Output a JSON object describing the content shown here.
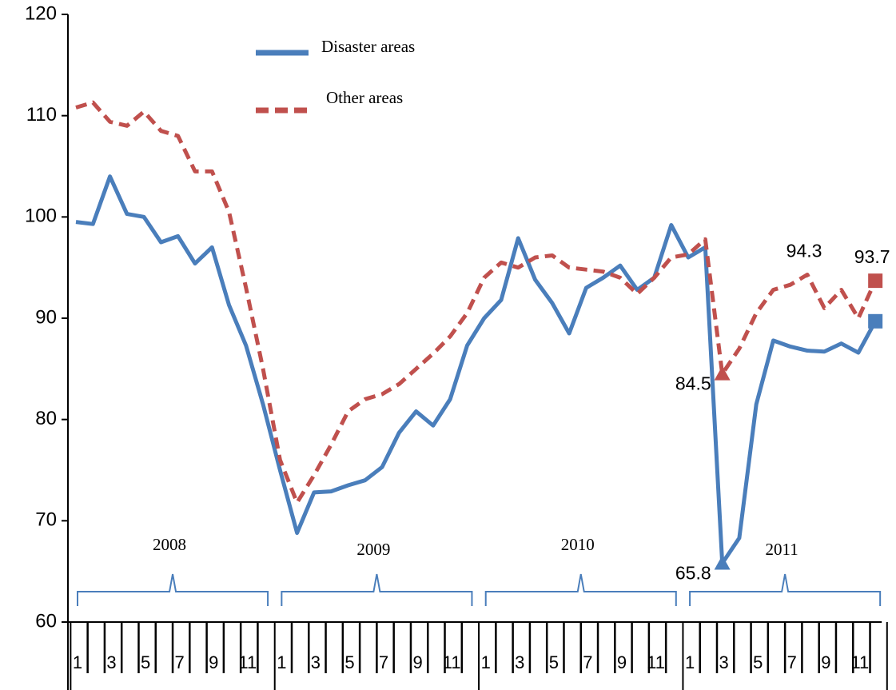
{
  "chart_data": {
    "type": "line",
    "categories": [
      "1",
      null,
      "3",
      null,
      "5",
      null,
      "7",
      null,
      "9",
      null,
      "11",
      null,
      "1",
      null,
      "3",
      null,
      "5",
      null,
      "7",
      null,
      "9",
      null,
      "11",
      null,
      "1",
      null,
      "3",
      null,
      "5",
      null,
      "7",
      null,
      "9",
      null,
      "11",
      null,
      "1",
      null,
      "3",
      null,
      "5",
      null,
      "7",
      null,
      "9",
      null,
      "11",
      null
    ],
    "groups": [
      "2008",
      "2009",
      "2010",
      "2011"
    ],
    "ylim": [
      60,
      120
    ],
    "yticks": [
      60,
      70,
      80,
      90,
      100,
      110,
      120
    ],
    "legend": "top-left",
    "series": [
      {
        "name": "Disaster areas",
        "color": "#4a7ebb",
        "style": "solid",
        "values": [
          99.5,
          99.3,
          104,
          100.3,
          100,
          97.5,
          98.1,
          95.4,
          97,
          91.3,
          87.3,
          81.5,
          75,
          68.8,
          72.8,
          72.9,
          73.5,
          74,
          75.3,
          78.7,
          80.8,
          79.4,
          82,
          87.3,
          90,
          91.8,
          97.9,
          93.8,
          91.5,
          88.5,
          93,
          94,
          95.2,
          92.8,
          94,
          99.2,
          96,
          97,
          65.8,
          68.3,
          81.5,
          87.8,
          87.2,
          86.8,
          86.7,
          87.5,
          86.6,
          89.7
        ],
        "value_labels": [
          null,
          null,
          null,
          null,
          null,
          null,
          null,
          null,
          null,
          null,
          null,
          null,
          null,
          null,
          null,
          null,
          null,
          null,
          null,
          null,
          null,
          null,
          null,
          null,
          null,
          null,
          null,
          null,
          null,
          null,
          null,
          null,
          null,
          null,
          null,
          null,
          null,
          null,
          "65.8",
          null,
          null,
          null,
          null,
          null,
          null,
          null,
          null,
          null
        ],
        "markers": {
          "38": "triangle",
          "47": "square"
        }
      },
      {
        "name": "Other areas",
        "color": "#c0504d",
        "style": "dashed",
        "values": [
          110.8,
          111.3,
          109.4,
          109,
          110.4,
          108.5,
          108,
          104.5,
          104.5,
          100.5,
          93,
          85,
          76,
          71.8,
          74.5,
          77.5,
          80.8,
          82,
          82.5,
          83.5,
          85,
          86.5,
          88.2,
          90.5,
          94,
          95.5,
          95,
          96,
          96.2,
          95,
          94.8,
          94.6,
          94,
          92.4,
          94,
          96,
          96.3,
          97.8,
          84.5,
          87,
          90.5,
          92.8,
          93.3,
          94.3,
          91,
          92.8,
          90,
          93.7
        ],
        "value_labels": [
          null,
          null,
          null,
          null,
          null,
          null,
          null,
          null,
          null,
          null,
          null,
          null,
          null,
          null,
          null,
          null,
          null,
          null,
          null,
          null,
          null,
          null,
          null,
          null,
          null,
          null,
          null,
          null,
          null,
          null,
          null,
          null,
          null,
          null,
          null,
          null,
          null,
          null,
          "84.5",
          null,
          null,
          null,
          null,
          "94.3",
          null,
          null,
          null,
          "93.7"
        ],
        "markers": {
          "38": "triangle",
          "47": "square"
        }
      }
    ]
  }
}
